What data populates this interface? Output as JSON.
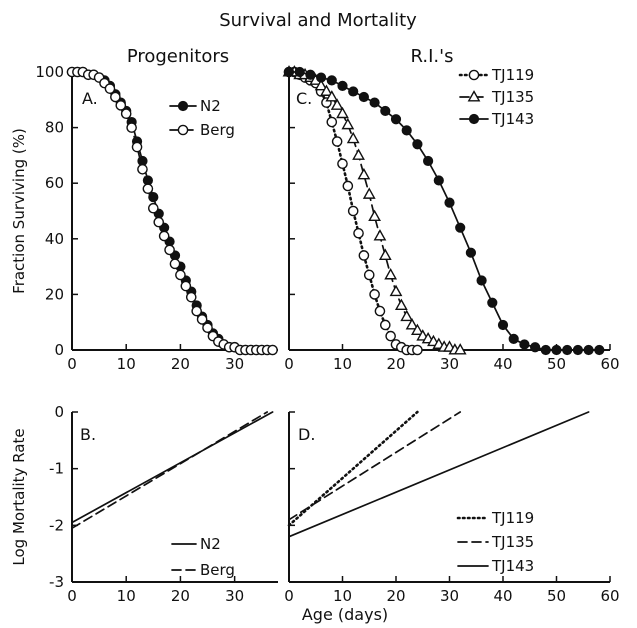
{
  "figure": {
    "title": "Survival and Mortality",
    "group_left": "Progenitors",
    "group_right": "R.I.'s",
    "shared_xlabel": "Age (days)"
  },
  "chart_data": [
    {
      "id": "A",
      "type": "line",
      "panel_label": "A.",
      "xlabel": "",
      "ylabel": "Fraction Surviving (%)",
      "xlim": [
        0,
        38
      ],
      "ylim": [
        0,
        100
      ],
      "xticks": [
        0,
        10,
        20,
        30
      ],
      "yticks": [
        0,
        20,
        40,
        60,
        80,
        100
      ],
      "legend_position": "top-right",
      "series": [
        {
          "name": "N2",
          "marker": "filled-circle",
          "linestyle": "solid",
          "x": [
            0,
            1,
            2,
            3,
            4,
            5,
            6,
            7,
            8,
            9,
            10,
            11,
            12,
            13,
            14,
            15,
            16,
            17,
            18,
            19,
            20,
            21,
            22,
            23,
            24,
            25,
            26,
            27,
            28,
            29,
            30,
            31,
            32,
            33,
            34,
            35,
            36,
            37
          ],
          "y": [
            100,
            100,
            100,
            99,
            99,
            98,
            97,
            95,
            92,
            89,
            86,
            82,
            75,
            68,
            61,
            55,
            49,
            44,
            39,
            34,
            30,
            25,
            21,
            16,
            12,
            9,
            6,
            4,
            2,
            1,
            1,
            0,
            0,
            0,
            0,
            0,
            0,
            0
          ]
        },
        {
          "name": "Berg",
          "marker": "open-circle",
          "linestyle": "dashed",
          "x": [
            0,
            1,
            2,
            3,
            4,
            5,
            6,
            7,
            8,
            9,
            10,
            11,
            12,
            13,
            14,
            15,
            16,
            17,
            18,
            19,
            20,
            21,
            22,
            23,
            24,
            25,
            26,
            27,
            28,
            29,
            30,
            31,
            32,
            33,
            34,
            35,
            36,
            37
          ],
          "y": [
            100,
            100,
            100,
            99,
            99,
            98,
            96,
            94,
            91,
            88,
            85,
            80,
            73,
            65,
            58,
            51,
            46,
            41,
            36,
            31,
            27,
            23,
            19,
            14,
            11,
            8,
            5,
            3,
            2,
            1,
            1,
            0,
            0,
            0,
            0,
            0,
            0,
            0
          ]
        }
      ]
    },
    {
      "id": "C",
      "type": "line",
      "panel_label": "C.",
      "xlabel": "",
      "ylabel": "",
      "xlim": [
        0,
        60
      ],
      "ylim": [
        0,
        100
      ],
      "xticks": [
        0,
        10,
        20,
        30,
        40,
        50,
        60
      ],
      "yticks": [
        0,
        20,
        40,
        60,
        80,
        100
      ],
      "legend_position": "top-right",
      "series": [
        {
          "name": "TJ119",
          "marker": "open-circle",
          "linestyle": "dotted",
          "x": [
            0,
            1,
            2,
            3,
            4,
            5,
            6,
            7,
            8,
            9,
            10,
            11,
            12,
            13,
            14,
            15,
            16,
            17,
            18,
            19,
            20,
            21,
            22,
            23,
            24
          ],
          "y": [
            100,
            100,
            99,
            98,
            97,
            96,
            93,
            89,
            82,
            75,
            67,
            59,
            50,
            42,
            34,
            27,
            20,
            14,
            9,
            5,
            2,
            1,
            0,
            0,
            0
          ]
        },
        {
          "name": "TJ135",
          "marker": "open-triangle",
          "linestyle": "dashed",
          "x": [
            0,
            1,
            2,
            3,
            4,
            5,
            6,
            7,
            8,
            9,
            10,
            11,
            12,
            13,
            14,
            15,
            16,
            17,
            18,
            19,
            20,
            21,
            22,
            23,
            24,
            25,
            26,
            27,
            28,
            29,
            30,
            31,
            32
          ],
          "y": [
            100,
            100,
            99,
            99,
            98,
            97,
            95,
            93,
            91,
            88,
            85,
            81,
            76,
            70,
            63,
            56,
            48,
            41,
            34,
            27,
            21,
            16,
            12,
            9,
            7,
            5,
            4,
            3,
            2,
            1,
            1,
            0,
            0
          ]
        },
        {
          "name": "TJ143",
          "marker": "filled-circle",
          "linestyle": "solid",
          "x": [
            0,
            2,
            4,
            6,
            8,
            10,
            12,
            14,
            16,
            18,
            20,
            22,
            24,
            26,
            28,
            30,
            32,
            34,
            36,
            38,
            40,
            42,
            44,
            46,
            48,
            50,
            52,
            54,
            56,
            58
          ],
          "y": [
            100,
            100,
            99,
            98,
            97,
            95,
            93,
            91,
            89,
            86,
            83,
            79,
            74,
            68,
            61,
            53,
            44,
            35,
            25,
            17,
            9,
            4,
            2,
            1,
            0,
            0,
            0,
            0,
            0,
            0
          ]
        }
      ]
    },
    {
      "id": "B",
      "type": "line",
      "panel_label": "B.",
      "xlabel": "",
      "ylabel": "Log Mortality Rate",
      "xlim": [
        0,
        38
      ],
      "ylim": [
        -3,
        0
      ],
      "xticks": [
        0,
        10,
        20,
        30
      ],
      "yticks": [
        0,
        -1,
        -2,
        -3
      ],
      "legend_position": "bottom-right",
      "series": [
        {
          "name": "N2",
          "linestyle": "solid",
          "x": [
            0,
            37
          ],
          "y": [
            -1.95,
            0.0
          ]
        },
        {
          "name": "Berg",
          "linestyle": "dashed",
          "x": [
            0,
            36
          ],
          "y": [
            -2.05,
            0.0
          ]
        }
      ]
    },
    {
      "id": "D",
      "type": "line",
      "panel_label": "D.",
      "xlabel": "",
      "ylabel": "",
      "xlim": [
        0,
        60
      ],
      "ylim": [
        -3,
        0
      ],
      "xticks": [
        0,
        10,
        20,
        30,
        40,
        50,
        60
      ],
      "yticks": [
        0,
        -1,
        -2,
        -3
      ],
      "legend_position": "right",
      "series": [
        {
          "name": "TJ119",
          "linestyle": "dotted",
          "x": [
            0,
            24
          ],
          "y": [
            -2.0,
            0.0
          ]
        },
        {
          "name": "TJ135",
          "linestyle": "dashed",
          "x": [
            0,
            32
          ],
          "y": [
            -1.9,
            0.0
          ]
        },
        {
          "name": "TJ143",
          "linestyle": "solid",
          "x": [
            0,
            56
          ],
          "y": [
            -2.2,
            0.0
          ]
        }
      ]
    }
  ]
}
